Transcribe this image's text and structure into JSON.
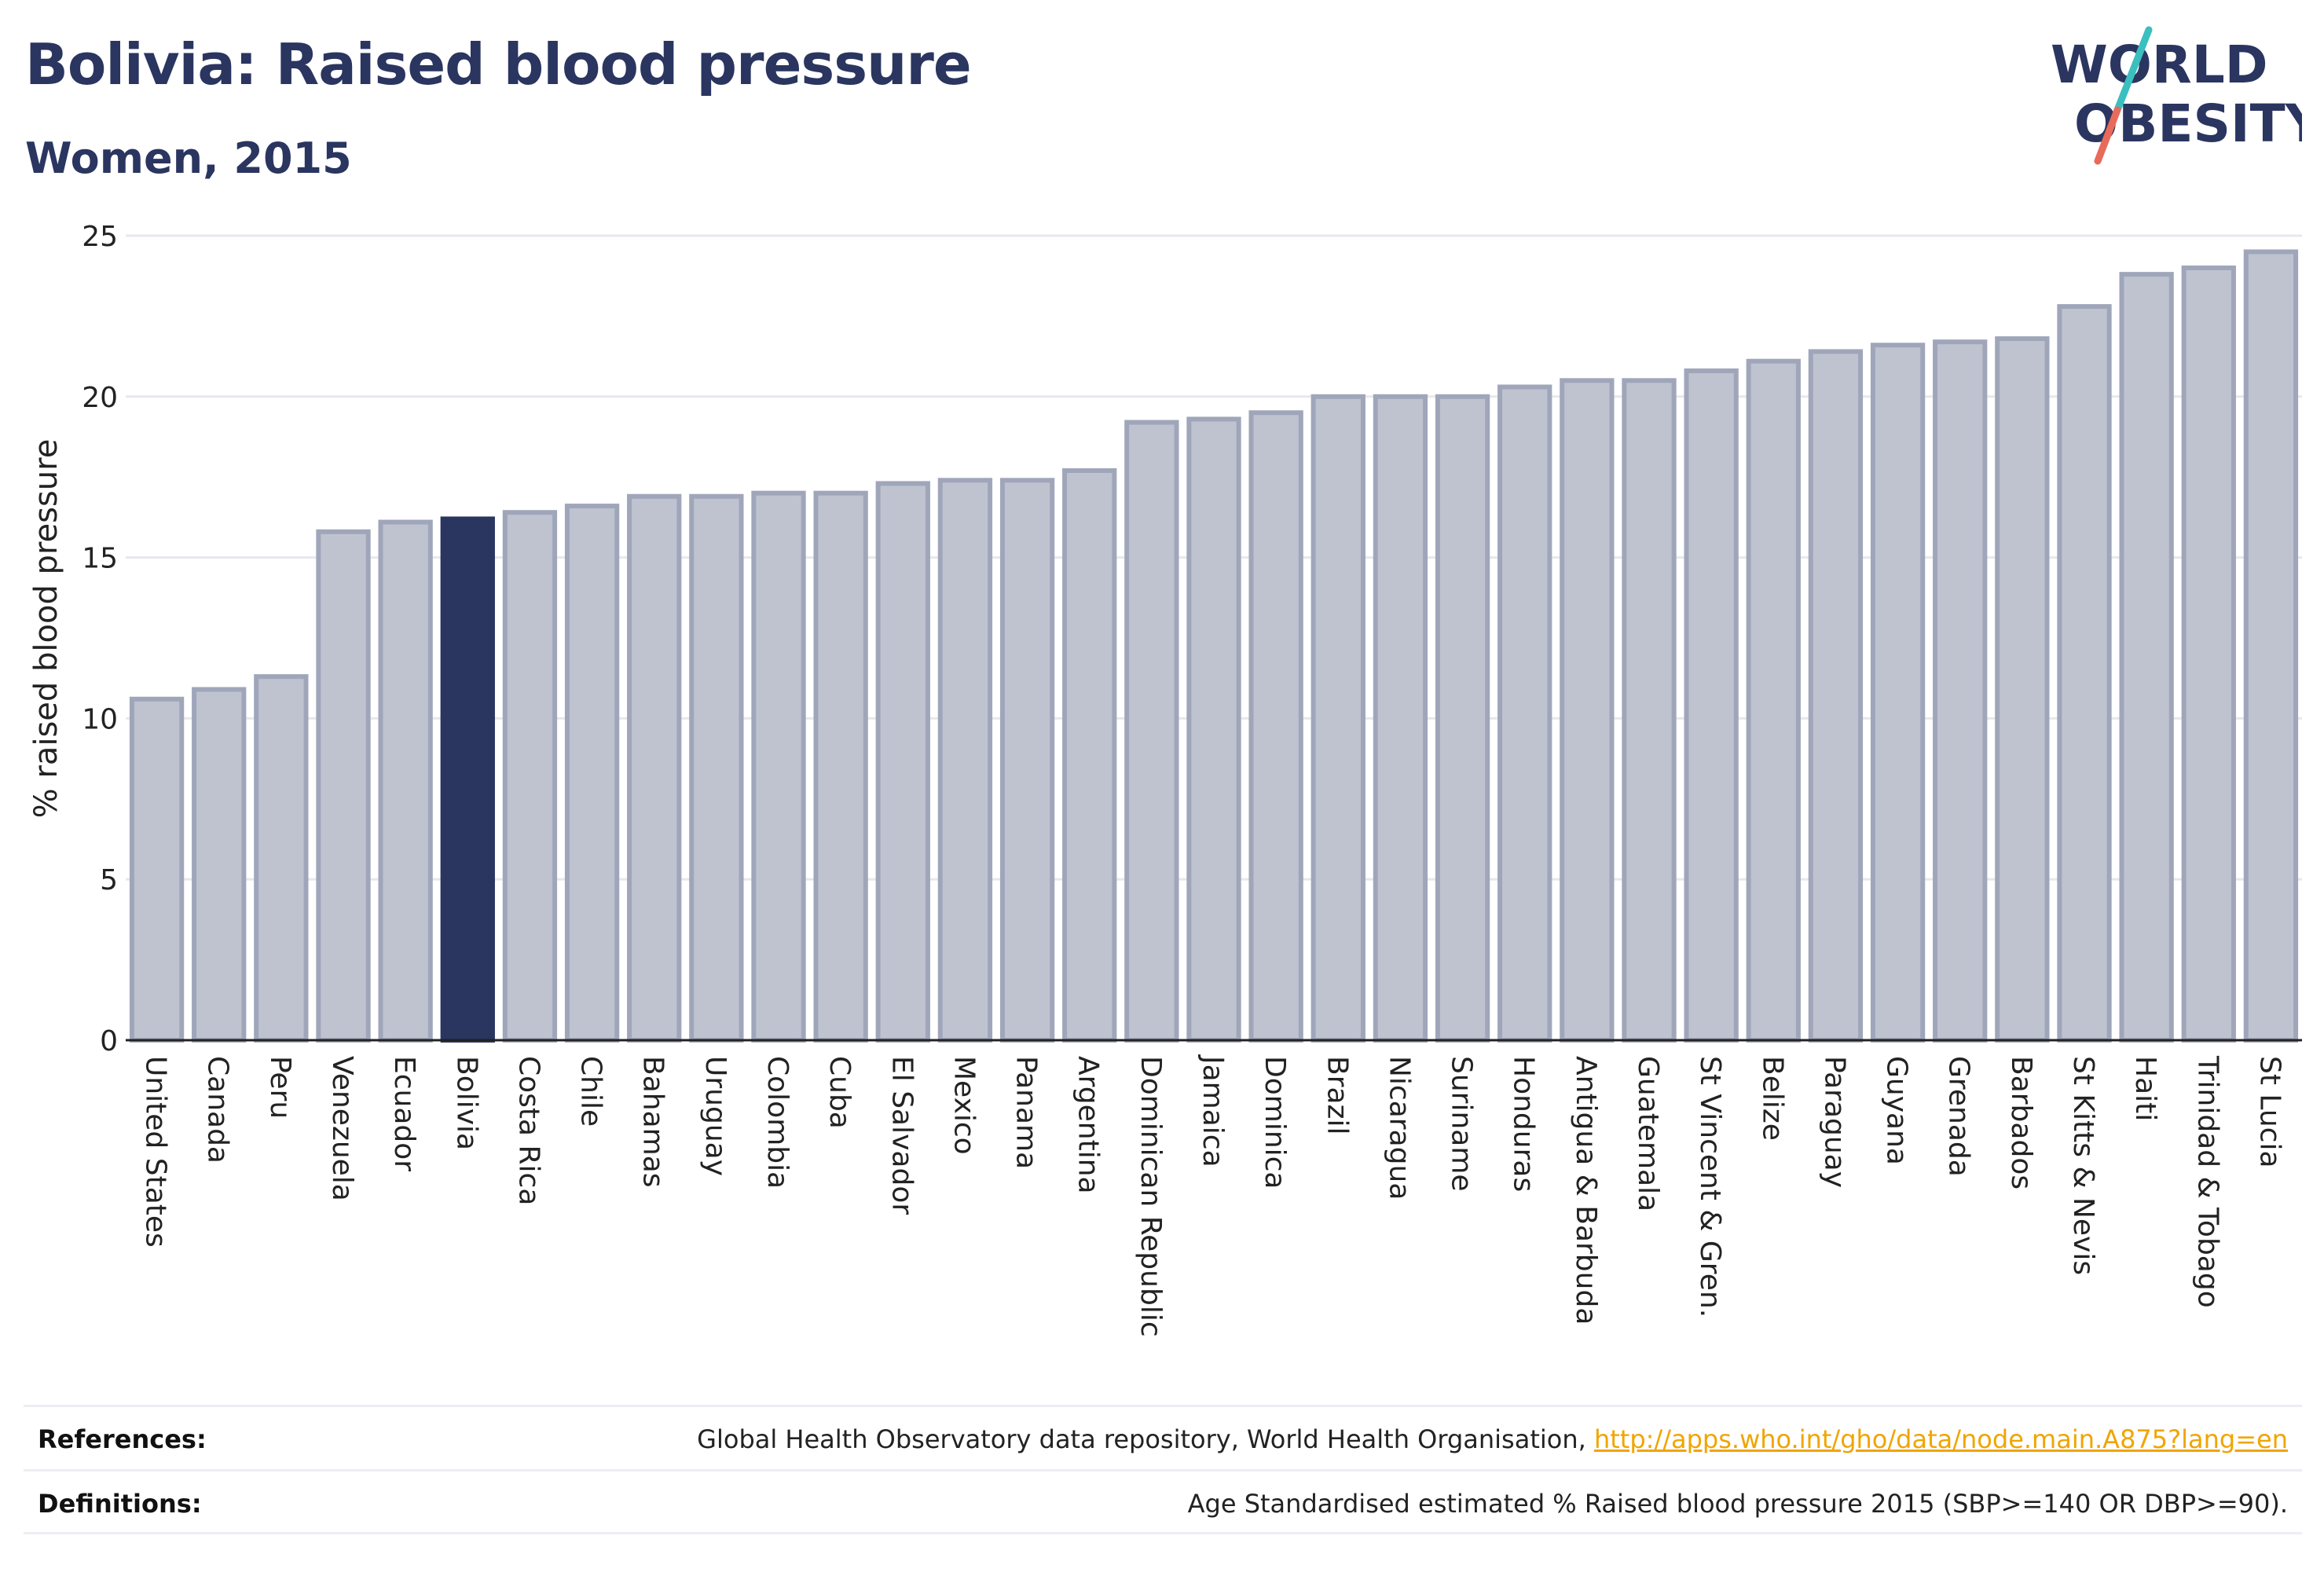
{
  "header": {
    "title": "Bolivia: Raised blood pressure",
    "subtitle": "Women, 2015",
    "logo_line1": "WORLD",
    "logo_line2": "OBESITY"
  },
  "colors": {
    "highlight": "#2a3560",
    "bar_fill": "#bfc3d0",
    "bar_stroke": "#a0a6ba",
    "title": "#2a3560",
    "link": "#f0a500",
    "logo_teal": "#3bbfbf",
    "logo_coral": "#e86a5a"
  },
  "chart_data": {
    "type": "bar",
    "title": "Bolivia: Raised blood pressure",
    "subtitle": "Women, 2015",
    "xlabel": "",
    "ylabel": "% raised blood pressure",
    "ylim": [
      0,
      25
    ],
    "yticks": [
      0,
      5,
      10,
      15,
      20,
      25
    ],
    "grid": true,
    "highlight": "Bolivia",
    "categories": [
      "United States",
      "Canada",
      "Peru",
      "Venezuela",
      "Ecuador",
      "Bolivia",
      "Costa Rica",
      "Chile",
      "Bahamas",
      "Uruguay",
      "Colombia",
      "Cuba",
      "El Salvador",
      "Mexico",
      "Panama",
      "Argentina",
      "Dominican Republic",
      "Jamaica",
      "Dominica",
      "Brazil",
      "Nicaragua",
      "Suriname",
      "Honduras",
      "Antigua & Barbuda",
      "Guatemala",
      "St Vincent & Gren.",
      "Belize",
      "Paraguay",
      "Guyana",
      "Grenada",
      "Barbados",
      "St Kitts & Nevis",
      "Haiti",
      "Trinidad & Tobago",
      "St Lucia"
    ],
    "values": [
      10.6,
      10.9,
      11.3,
      15.8,
      16.1,
      16.2,
      16.4,
      16.6,
      16.9,
      16.9,
      17.0,
      17.0,
      17.3,
      17.4,
      17.4,
      17.7,
      19.2,
      19.3,
      19.5,
      20.0,
      20.0,
      20.0,
      20.3,
      20.5,
      20.5,
      20.8,
      21.1,
      21.4,
      21.6,
      21.7,
      21.8,
      22.8,
      23.8,
      24.0,
      24.5
    ]
  },
  "footer": {
    "references_label": "References:",
    "references_text": "Global Health Observatory data repository, World Health Organisation, ",
    "references_link": "http://apps.who.int/gho/data/node.main.A875?lang=en",
    "definitions_label": "Definitions:",
    "definitions_text": "Age Standardised estimated % Raised blood pressure 2015 (SBP>=140 OR DBP>=90)."
  }
}
